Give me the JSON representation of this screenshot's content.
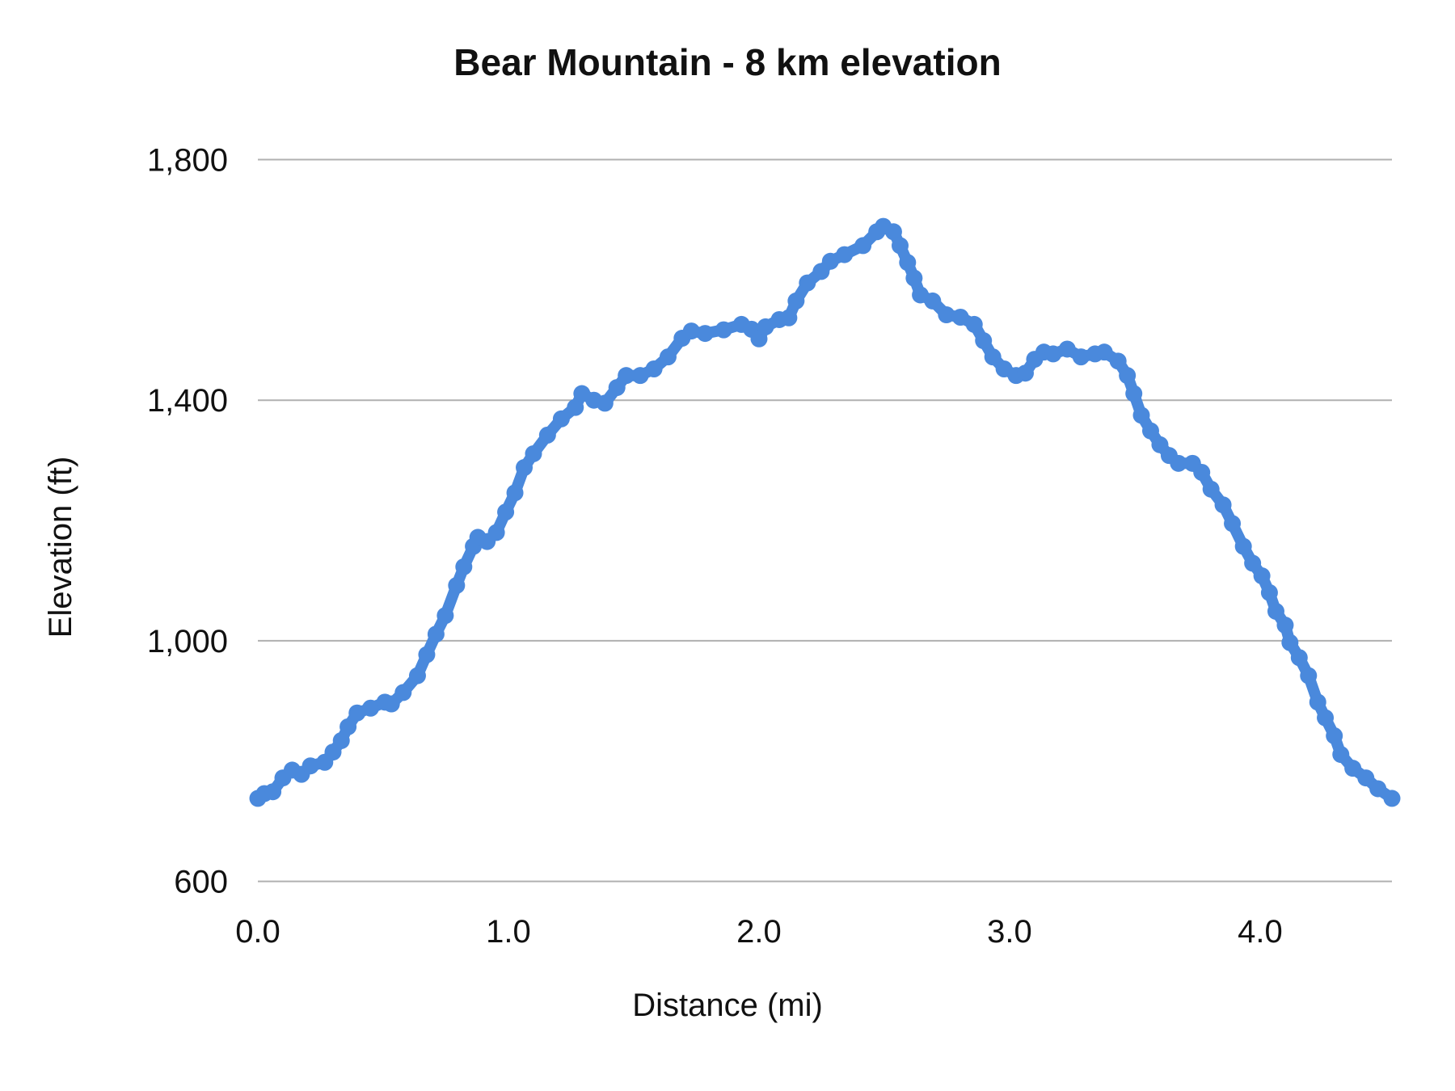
{
  "chart_data": {
    "type": "line",
    "title": "Bear Mountain  - 8 km elevation",
    "xlabel": "Distance (mi)",
    "ylabel": "Elevation (ft)",
    "xlim": [
      0,
      4.526
    ],
    "ylim": [
      600,
      1800
    ],
    "x_ticks": [
      "0.0",
      "1.0",
      "2.0",
      "3.0",
      "4.0"
    ],
    "y_ticks": [
      "600",
      "1,000",
      "1,400",
      "1,800"
    ],
    "grid": true,
    "legend": "none",
    "marker": "circle",
    "color": "#4a89dc",
    "series": [
      {
        "x": [
          0,
          0.026,
          0.06,
          0.1,
          0.137,
          0.174,
          0.21,
          0.267,
          0.3,
          0.333,
          0.36,
          0.396,
          0.45,
          0.507,
          0.533,
          0.58,
          0.637,
          0.674,
          0.711,
          0.748,
          0.793,
          0.822,
          0.86,
          0.878,
          0.915,
          0.952,
          0.989,
          1.026,
          1.063,
          1.1,
          1.156,
          1.211,
          1.267,
          1.293,
          1.341,
          1.385,
          1.433,
          1.47,
          1.526,
          1.581,
          1.637,
          1.693,
          1.73,
          1.785,
          1.859,
          1.93,
          1.97,
          2.0,
          2.026,
          2.081,
          2.119,
          2.148,
          2.193,
          2.248,
          2.285,
          2.341,
          2.415,
          2.47,
          2.496,
          2.537,
          2.563,
          2.593,
          2.619,
          2.644,
          2.693,
          2.748,
          2.804,
          2.859,
          2.896,
          2.933,
          2.978,
          3.026,
          3.063,
          3.1,
          3.137,
          3.174,
          3.23,
          3.285,
          3.341,
          3.378,
          3.433,
          3.47,
          3.496,
          3.526,
          3.563,
          3.6,
          3.637,
          3.674,
          3.73,
          3.767,
          3.804,
          3.852,
          3.889,
          3.933,
          3.97,
          4.007,
          4.037,
          4.063,
          4.1,
          4.119,
          4.156,
          4.193,
          4.23,
          4.26,
          4.296,
          4.322,
          4.37,
          4.422,
          4.47,
          4.526
        ],
        "y": [
          738,
          746,
          749,
          772,
          785,
          778,
          792,
          798,
          815,
          834,
          857,
          880,
          888,
          898,
          895,
          914,
          942,
          977,
          1011,
          1042,
          1092,
          1123,
          1157,
          1172,
          1165,
          1180,
          1214,
          1246,
          1288,
          1311,
          1342,
          1369,
          1388,
          1411,
          1400,
          1395,
          1421,
          1441,
          1441,
          1452,
          1472,
          1503,
          1515,
          1511,
          1517,
          1526,
          1518,
          1502,
          1522,
          1534,
          1537,
          1565,
          1595,
          1614,
          1631,
          1642,
          1657,
          1680,
          1689,
          1680,
          1657,
          1629,
          1603,
          1575,
          1565,
          1542,
          1538,
          1526,
          1499,
          1472,
          1452,
          1441,
          1445,
          1468,
          1480,
          1477,
          1485,
          1472,
          1477,
          1480,
          1465,
          1441,
          1411,
          1375,
          1349,
          1326,
          1308,
          1295,
          1295,
          1280,
          1252,
          1226,
          1195,
          1157,
          1129,
          1108,
          1080,
          1049,
          1026,
          997,
          972,
          942,
          898,
          872,
          842,
          811,
          788,
          772,
          754,
          738
        ]
      }
    ]
  }
}
